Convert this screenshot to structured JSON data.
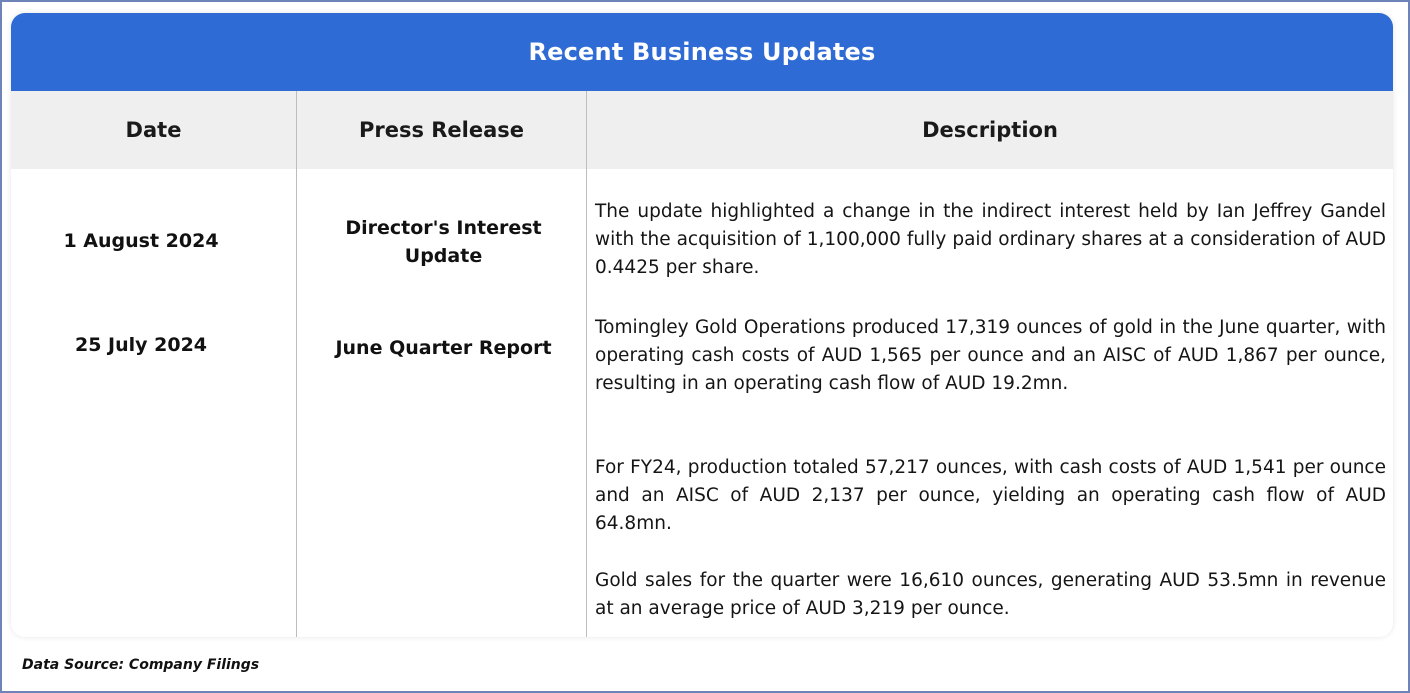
{
  "title": "Recent Business Updates",
  "columns": {
    "date": "Date",
    "press_release": "Press Release",
    "description": "Description"
  },
  "rows": [
    {
      "date": "1 August 2024",
      "press_release": "Director's Interest Update",
      "description": [
        "The update highlighted a change in the indirect interest held by Ian Jeffrey Gandel with the acquisition of 1,100,000 fully paid ordinary shares at a consideration of AUD 0.4425 per share."
      ]
    },
    {
      "date": "25 July 2024",
      "press_release": "June Quarter Report",
      "description": [
        "Tomingley Gold Operations produced 17,319 ounces of gold in the June quarter, with operating cash costs of AUD 1,565 per ounce and an AISC of AUD 1,867 per ounce, resulting in an operating cash flow of AUD 19.2mn.",
        "For FY24, production totaled 57,217 ounces, with cash costs of AUD 1,541 per ounce and an AISC of AUD 2,137 per ounce, yielding an operating cash flow of AUD 64.8mn.",
        "Gold sales for the quarter were 16,610 ounces, generating AUD 53.5mn in revenue at an average price of AUD 3,219 per ounce."
      ]
    }
  ],
  "source": "Data Source: Company Filings",
  "colors": {
    "title_bar": "#2f6bd4",
    "header_bg": "#efefef",
    "frame_border": "#6e83b8"
  }
}
